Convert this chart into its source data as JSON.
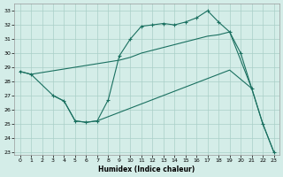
{
  "xlabel": "Humidex (Indice chaleur)",
  "bg_color": "#d4ede8",
  "grid_color": "#aacfc8",
  "line_color": "#1a7060",
  "ylim": [
    22.8,
    33.5
  ],
  "xlim": [
    -0.5,
    23.5
  ],
  "yticks": [
    23,
    24,
    25,
    26,
    27,
    28,
    29,
    30,
    31,
    32,
    33
  ],
  "xticks": [
    0,
    1,
    2,
    3,
    4,
    5,
    6,
    7,
    8,
    9,
    10,
    11,
    12,
    13,
    14,
    15,
    16,
    17,
    18,
    19,
    20,
    21,
    22,
    23
  ],
  "line1_x": [
    0,
    1,
    3,
    4,
    5,
    6,
    7,
    8,
    9,
    10,
    11,
    12,
    13,
    14,
    15,
    16,
    17,
    18,
    19,
    20,
    21,
    22,
    23
  ],
  "line1_y": [
    28.7,
    28.5,
    27.0,
    26.6,
    25.2,
    25.1,
    25.2,
    26.7,
    29.8,
    31.0,
    31.9,
    32.0,
    32.1,
    32.0,
    32.2,
    32.5,
    33.0,
    32.2,
    31.5,
    30.0,
    27.5,
    25.0,
    23.0
  ],
  "line2_x": [
    0,
    1,
    9,
    10,
    11,
    12,
    13,
    14,
    15,
    16,
    17,
    18,
    19,
    21
  ],
  "line2_y": [
    28.7,
    28.5,
    29.5,
    29.7,
    30.0,
    30.2,
    30.4,
    30.6,
    30.8,
    31.0,
    31.2,
    31.3,
    31.5,
    27.5
  ],
  "line3_x": [
    3,
    4,
    5,
    6,
    7,
    8,
    9,
    10,
    11,
    12,
    13,
    14,
    15,
    16,
    17,
    18,
    19,
    21,
    22,
    23
  ],
  "line3_y": [
    27.0,
    26.6,
    25.2,
    25.1,
    25.2,
    25.5,
    25.8,
    26.1,
    26.4,
    26.7,
    27.0,
    27.3,
    27.6,
    27.9,
    28.2,
    28.5,
    28.8,
    27.5,
    25.0,
    23.0
  ]
}
